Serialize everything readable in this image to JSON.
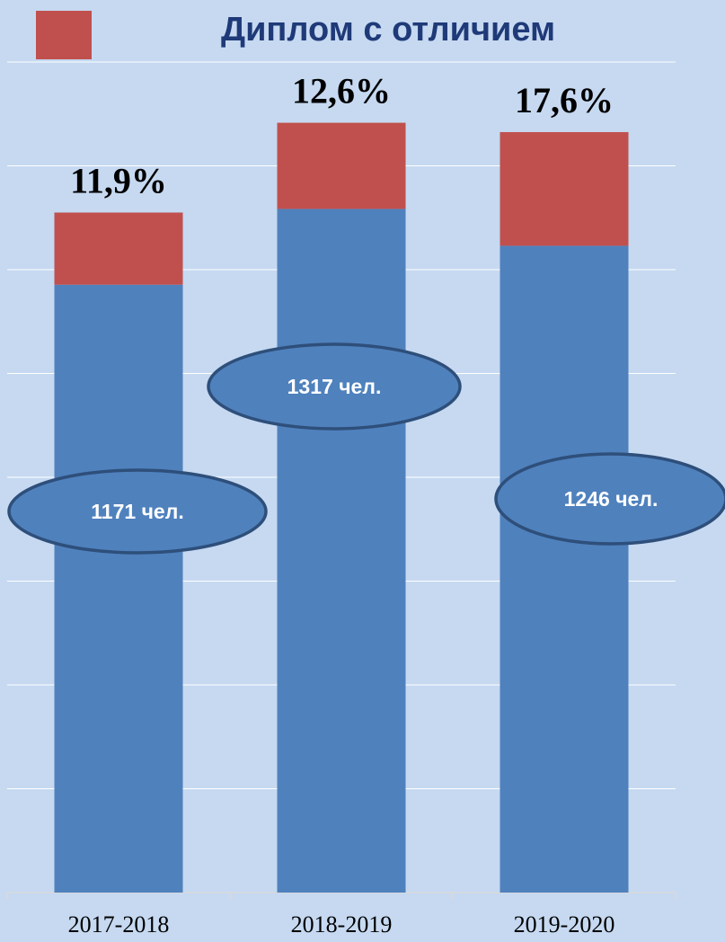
{
  "chart_data": {
    "type": "bar",
    "stacked": true,
    "categories": [
      "2017-2018",
      "2018-2019",
      "2019-2020"
    ],
    "series": [
      {
        "name": "",
        "values": [
          1171,
          1317,
          1246
        ],
        "color": "#4f81bd"
      },
      {
        "name": "Диплом с отличием",
        "values": [
          139,
          166,
          219
        ],
        "color": "#c0504d"
      }
    ],
    "value_labels": [
      "11,9%",
      "12,6%",
      "17,6%"
    ],
    "base_labels": [
      "1171 чел.",
      "1317 чел.",
      "1246 чел."
    ],
    "ylim": [
      0,
      1600
    ],
    "grid": true,
    "legend": "top-center",
    "title": "",
    "xlabel": "",
    "ylabel": "",
    "colors": {
      "background": "#c6d9f1",
      "gridline": "#ffffff",
      "ellipse_fill": "#4f81bd",
      "ellipse_stroke": "#2e4f7a"
    }
  }
}
